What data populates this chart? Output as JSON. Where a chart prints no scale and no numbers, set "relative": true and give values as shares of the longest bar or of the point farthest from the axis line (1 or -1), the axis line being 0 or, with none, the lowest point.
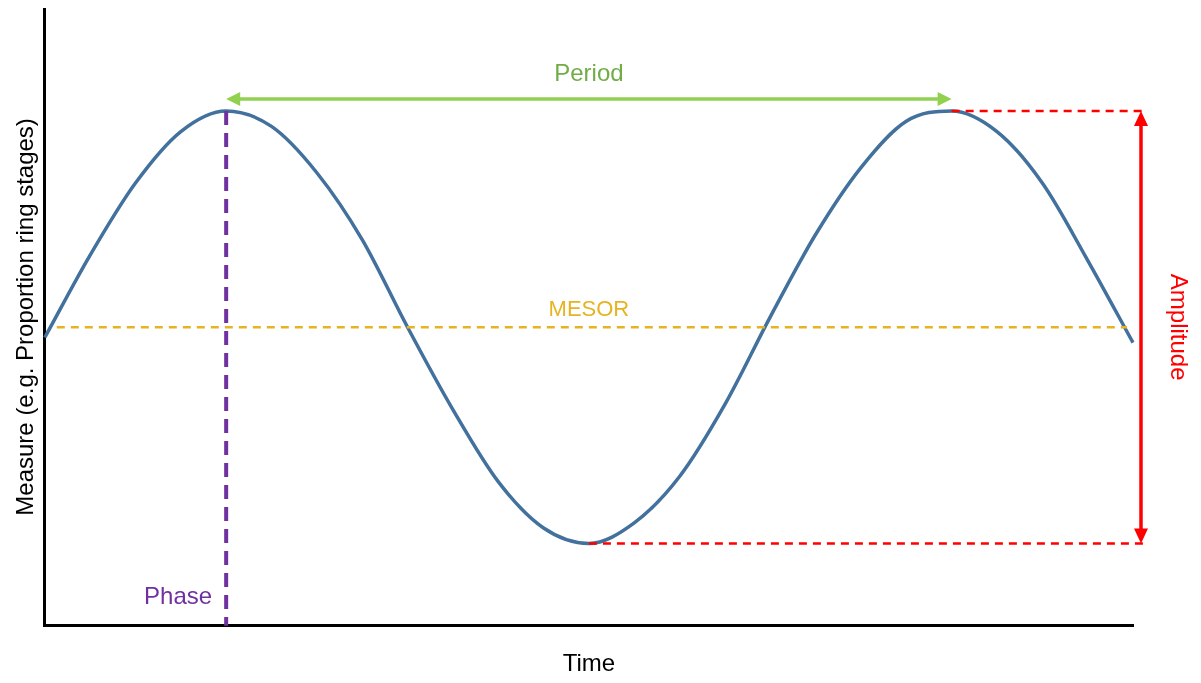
{
  "chart_data": {
    "type": "line",
    "relative": true,
    "xlabel": "Time",
    "ylabel": "Measure (e.g. Proportion ring stages)",
    "categories": [
      null,
      null,
      null,
      null,
      null,
      null,
      null,
      null,
      null,
      null,
      null,
      null,
      null,
      null,
      null,
      null,
      null,
      null,
      null,
      null,
      null,
      null,
      null,
      null,
      null
    ],
    "series": [
      {
        "color": "#41719c",
        "values": [
          0.56,
          0.72,
          0.86,
          0.96,
          1.0,
          0.97,
          0.88,
          0.75,
          0.58,
          0.42,
          0.28,
          0.19,
          0.16,
          0.2,
          0.29,
          0.43,
          0.6,
          0.76,
          0.89,
          0.98,
          1.0,
          0.96,
          0.86,
          0.71,
          0.55
        ]
      }
    ],
    "ref_lines": [
      {
        "axis": "y",
        "value": 0.58,
        "label": "MESOR",
        "color": "#e6b422",
        "line_style": "dashed"
      },
      {
        "axis": "y",
        "value": 1.0,
        "color": "#ff0000",
        "line_style": "dashed"
      },
      {
        "axis": "y",
        "value": 0.16,
        "color": "#ff0000",
        "line_style": "dashed"
      }
    ],
    "annotations": [
      "Period",
      "Phase",
      "Amplitude"
    ],
    "grid": false,
    "legend": false,
    "marker": "none",
    "line_style": "solid"
  }
}
